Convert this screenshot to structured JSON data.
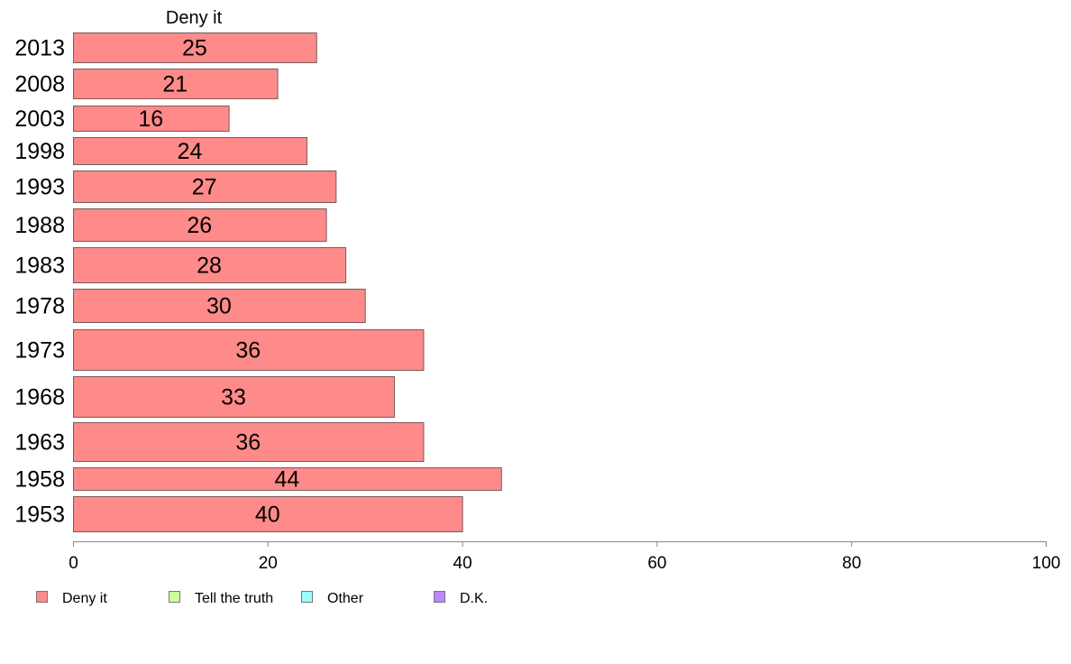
{
  "chart_data": {
    "type": "bar",
    "orientation": "horizontal",
    "column_title": "Deny it",
    "categories": [
      "2013",
      "2008",
      "2003",
      "1998",
      "1993",
      "1988",
      "1983",
      "1978",
      "1973",
      "1968",
      "1963",
      "1958",
      "1953"
    ],
    "series": [
      {
        "name": "Deny it",
        "color": "#ff8a8a",
        "values": [
          25,
          21,
          16,
          24,
          27,
          26,
          28,
          30,
          36,
          33,
          36,
          44,
          40
        ]
      }
    ],
    "xlim": [
      0,
      100
    ],
    "xticks": [
      0,
      20,
      40,
      60,
      80,
      100
    ],
    "legend_position": "bottom-left",
    "legend": [
      {
        "name": "Deny it",
        "color": "#ff8a8a"
      },
      {
        "name": "Tell the truth",
        "color": "#ccff99"
      },
      {
        "name": "Other",
        "color": "#99ffff"
      },
      {
        "name": "D.K.",
        "color": "#bb88ff"
      }
    ]
  }
}
